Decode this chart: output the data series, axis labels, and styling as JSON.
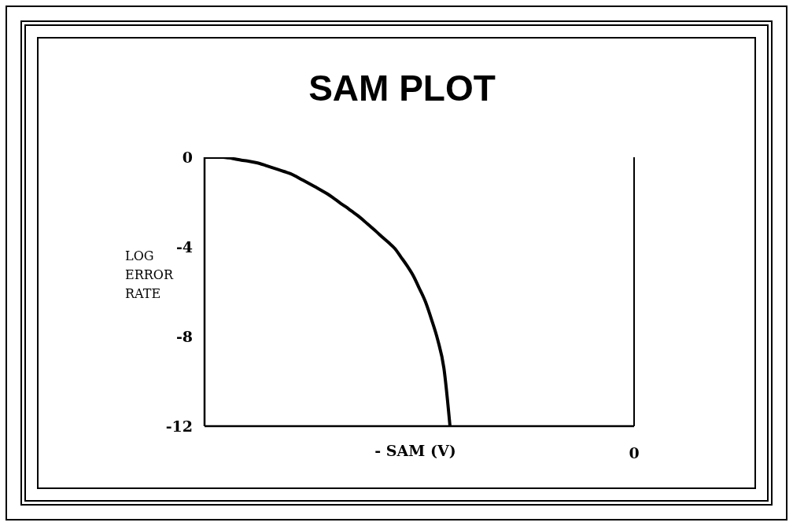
{
  "chart_data": {
    "type": "line",
    "title": "SAM PLOT",
    "xlabel": "- SAM (V)",
    "ylabel": "LOG ERROR RATE",
    "categories": [
      null,
      null,
      null,
      null,
      null,
      null,
      null,
      null,
      null,
      null,
      null,
      null,
      null,
      null,
      null,
      null,
      null,
      null,
      null,
      null,
      null,
      null,
      null,
      null,
      null,
      null,
      null,
      null,
      null,
      null,
      null,
      null,
      null,
      null,
      null,
      null,
      null,
      null,
      null,
      null,
      null,
      null,
      null,
      null,
      null,
      null,
      null,
      null,
      null,
      null,
      null,
      null,
      null,
      null,
      null,
      null,
      null,
      null,
      null,
      null,
      null,
      null,
      null,
      null,
      null,
      null,
      null,
      null,
      null,
      null,
      "0"
    ],
    "series": [
      {
        "color": "#000000",
        "values": [
          0,
          0,
          0,
          0,
          -0.03,
          -0.08,
          -0.13,
          -0.17,
          -0.22,
          -0.28,
          -0.37,
          -0.46,
          -0.55,
          -0.64,
          -0.73,
          -0.87,
          -1.02,
          -1.17,
          -1.32,
          -1.47,
          -1.63,
          -1.82,
          -2.02,
          -2.21,
          -2.41,
          -2.61,
          -2.84,
          -3.08,
          -3.32,
          -3.57,
          -3.81,
          -4.07,
          -4.45,
          -4.84,
          -5.28,
          -5.85,
          -6.45,
          -7.25,
          -8.15,
          -9.4,
          -12,
          null,
          null,
          null,
          null,
          null,
          null,
          null,
          null,
          null,
          null,
          null,
          null,
          null,
          null,
          null,
          null,
          null,
          null,
          null,
          null,
          null,
          null,
          null,
          null,
          null,
          null,
          null,
          null,
          null,
          null
        ]
      }
    ],
    "ylim": [
      -12,
      0
    ],
    "yticks": [
      0,
      -4,
      -8,
      -12
    ]
  }
}
